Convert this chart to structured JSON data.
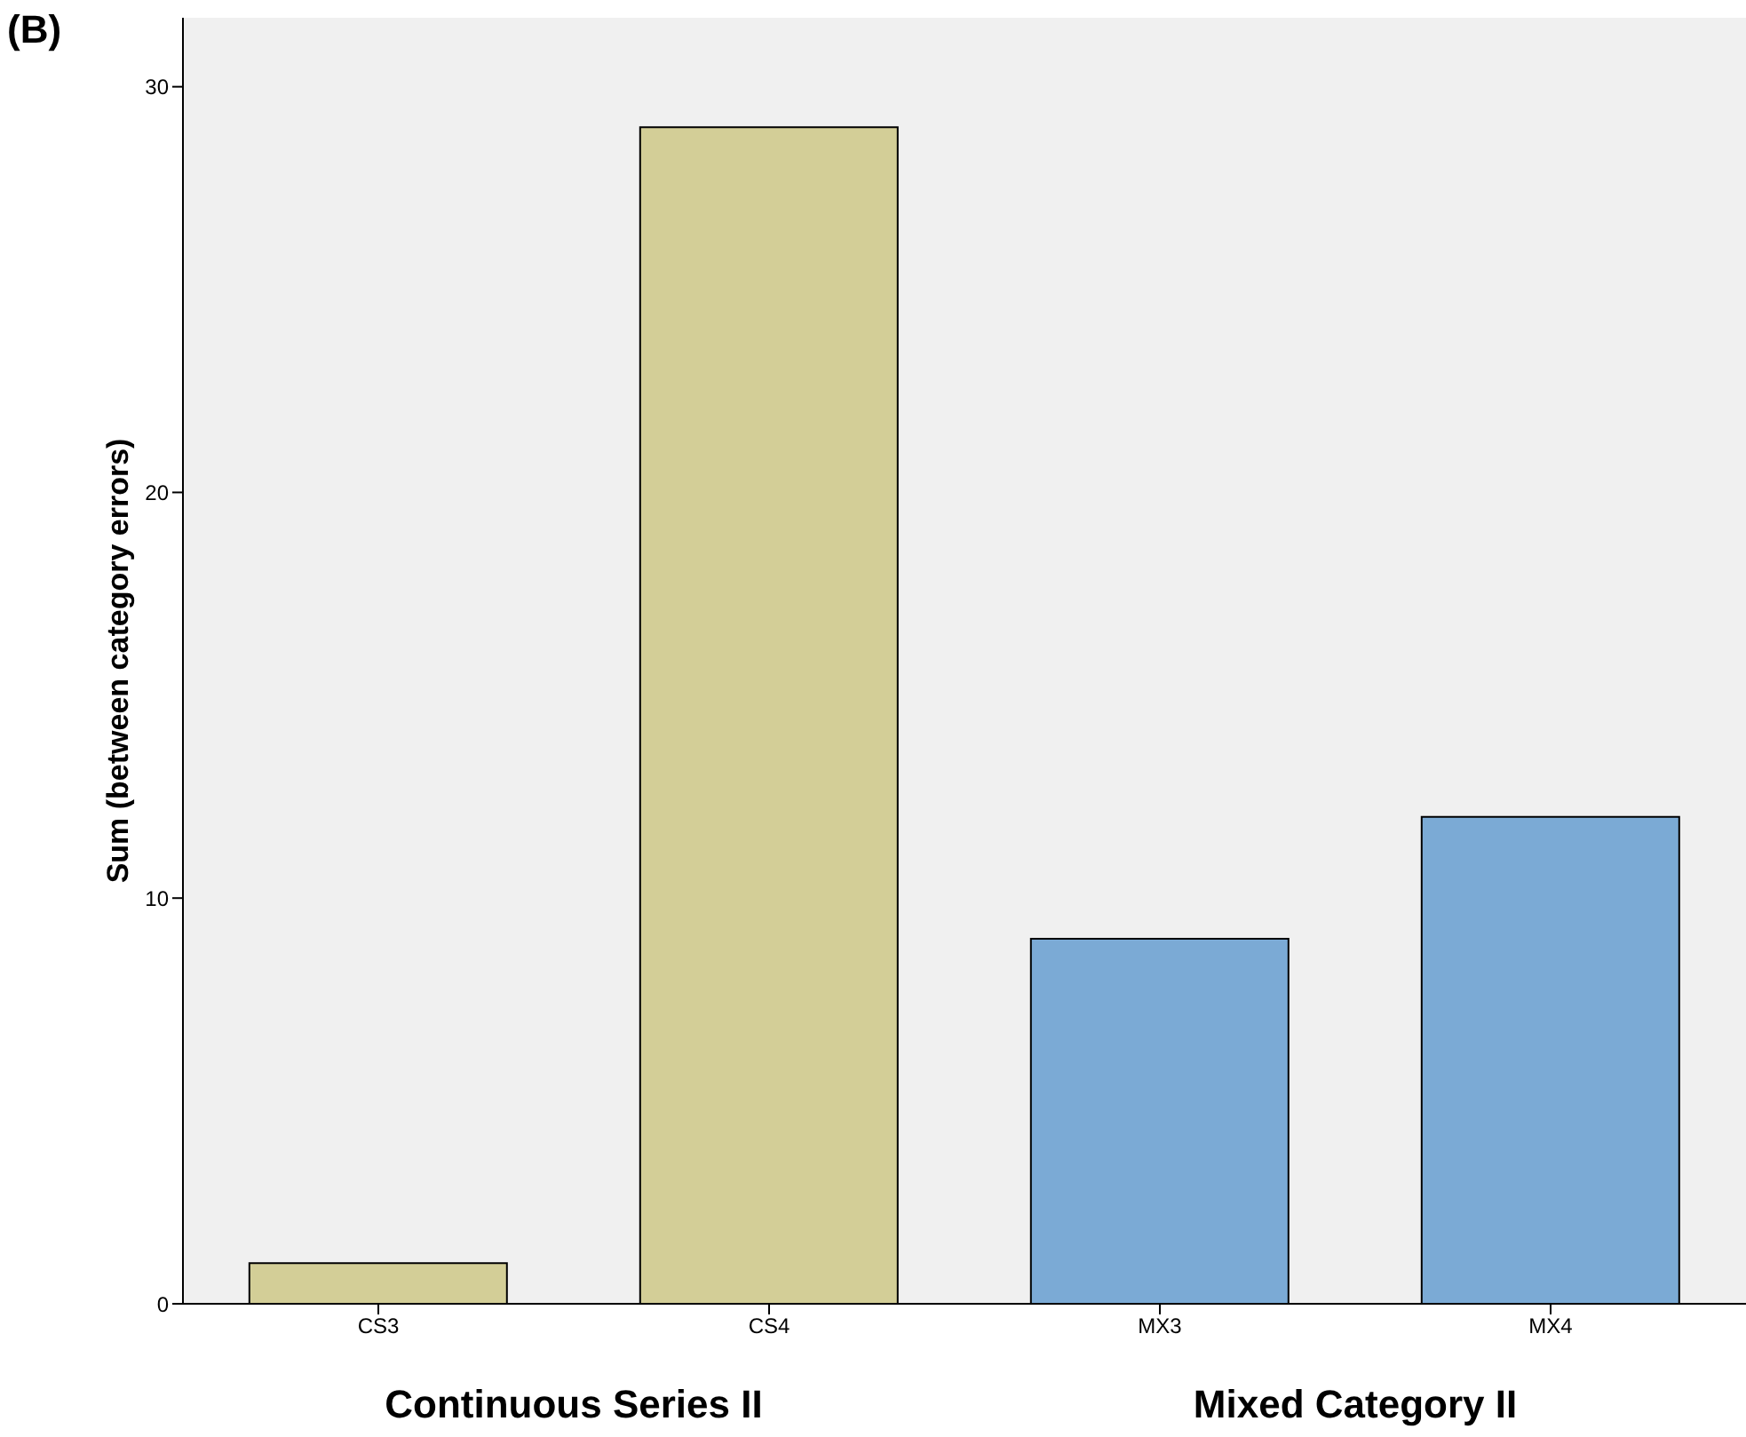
{
  "chart_data": {
    "type": "bar",
    "title": "(B)",
    "ylabel": "Sum (between category errors)",
    "categories": [
      "CS3",
      "CS4",
      "MX3",
      "MX4"
    ],
    "values": [
      1,
      29,
      9,
      12
    ],
    "colors": [
      "#d3ce97",
      "#d3ce97",
      "#7baad5",
      "#7baad5"
    ],
    "ylim": [
      0,
      31.7
    ],
    "yticks": [
      0,
      10,
      20,
      30
    ],
    "grid": false,
    "annotations": [
      "Continuous Series II",
      "Mixed Category II"
    ]
  }
}
